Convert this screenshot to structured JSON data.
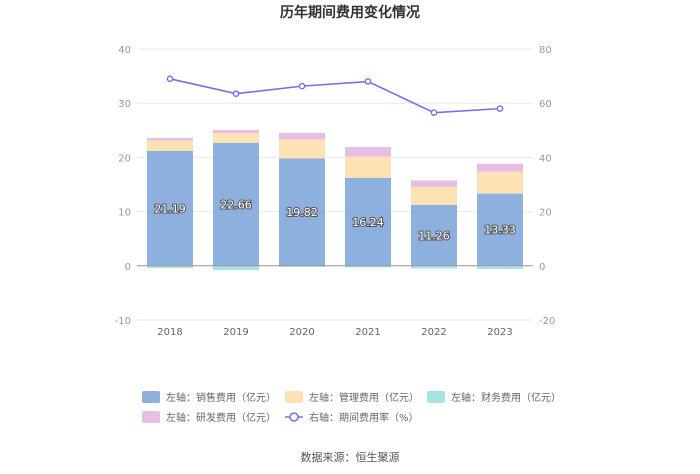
{
  "chart_data": {
    "type": "bar",
    "stacked": true,
    "title": "历年期间费用变化情况",
    "categories": [
      "2018",
      "2019",
      "2020",
      "2021",
      "2022",
      "2023"
    ],
    "left_axis": {
      "ylim": [
        -10,
        40
      ],
      "ticks": [
        "-10",
        "0",
        "10",
        "20",
        "30",
        "40"
      ],
      "tick_values": [
        -10,
        0,
        10,
        20,
        30,
        40
      ]
    },
    "right_axis": {
      "ylim": [
        -20,
        80
      ],
      "ticks": [
        "-20",
        "0",
        "20",
        "40",
        "60",
        "80"
      ],
      "tick_values": [
        -20,
        0,
        20,
        40,
        60,
        80
      ]
    },
    "series": [
      {
        "name": "左轴：销售费用（亿元）",
        "axis": "left",
        "kind": "bar",
        "color": "#8eb0de",
        "values": [
          21.19,
          22.66,
          19.82,
          16.24,
          11.26,
          13.33
        ],
        "labels": [
          "21.19",
          "22.66",
          "19.82",
          "16.24",
          "11.26",
          "13.33"
        ]
      },
      {
        "name": "左轴：管理费用（亿元）",
        "axis": "left",
        "kind": "bar",
        "color": "#fde3b3",
        "values": [
          1.9,
          1.8,
          3.5,
          3.9,
          3.3,
          4.0
        ]
      },
      {
        "name": "左轴：财务费用（亿元）",
        "axis": "left",
        "kind": "bar",
        "color": "#a6e3e2",
        "values": [
          -0.4,
          -0.8,
          -0.2,
          -0.3,
          -0.5,
          -0.6
        ]
      },
      {
        "name": "左轴：研发费用（亿元）",
        "axis": "left",
        "kind": "bar",
        "color": "#e7bfe2",
        "values": [
          0.5,
          0.6,
          1.2,
          1.8,
          1.2,
          1.5
        ]
      },
      {
        "name": "右轴：期间费用率（%）",
        "axis": "right",
        "kind": "line",
        "color": "#6f73e6",
        "values": [
          69.0,
          63.5,
          66.3,
          68.0,
          56.5,
          58.0
        ]
      }
    ]
  },
  "source": "数据来源：恒生聚源"
}
